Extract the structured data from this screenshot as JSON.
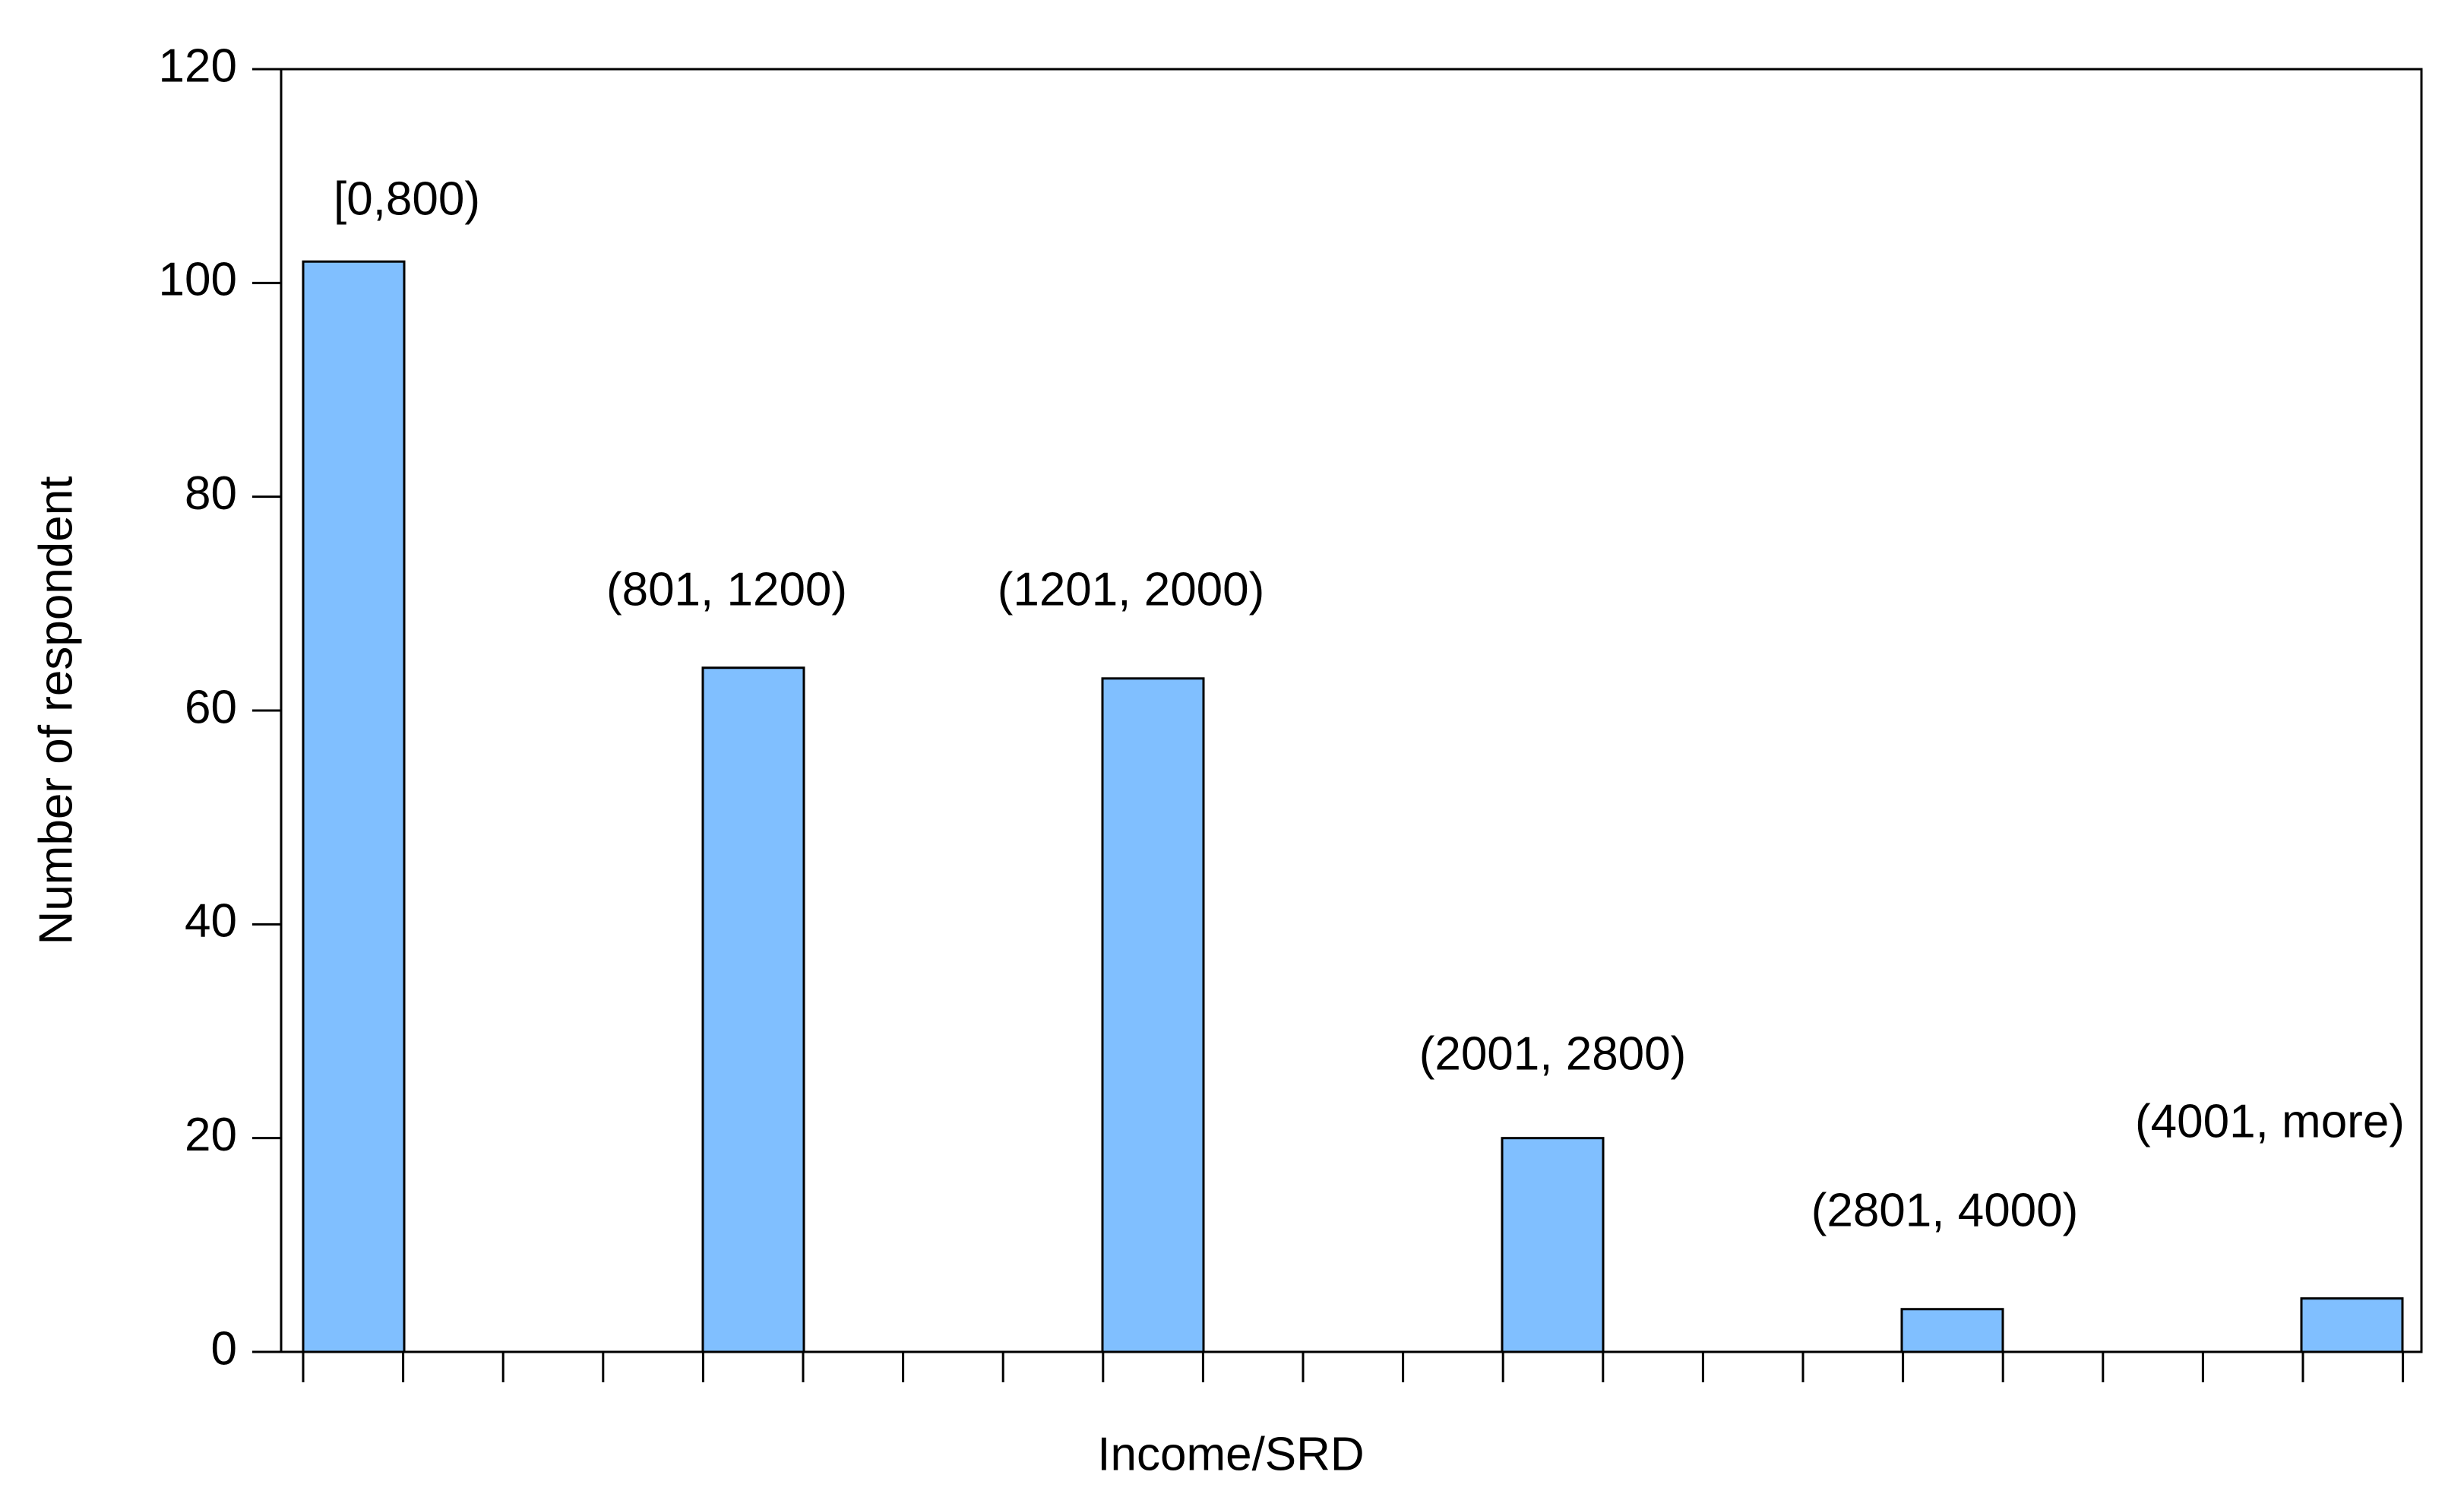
{
  "chart_data": {
    "type": "bar",
    "categories": [
      "[0,800)",
      "(801, 1200)",
      "(1201, 2000)",
      "(2001, 2800)",
      "(2801, 4000)",
      "(4001, more)"
    ],
    "values": [
      102,
      64,
      63,
      20,
      4,
      5
    ],
    "color": "#80bfff",
    "xlabel": "Income/SRD",
    "ylabel": "Number of respondent",
    "ylim": [
      0,
      120
    ],
    "yticks": [
      0,
      20,
      40,
      60,
      80,
      100,
      120
    ],
    "grid": false
  }
}
